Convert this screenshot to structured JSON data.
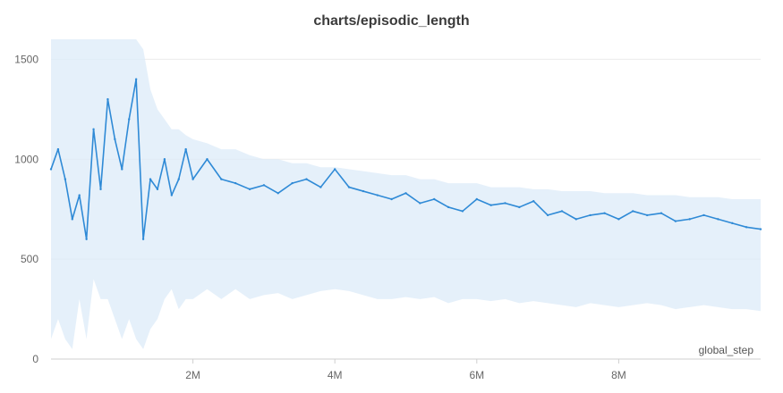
{
  "chart_data": {
    "type": "line",
    "title": "charts/episodic_length",
    "xlabel": "global_step",
    "ylabel": "",
    "xlim": [
      0,
      10000000
    ],
    "ylim": [
      0,
      1600
    ],
    "x_ticks": [
      {
        "value": 2000000,
        "label": "2M"
      },
      {
        "value": 4000000,
        "label": "4M"
      },
      {
        "value": 6000000,
        "label": "6M"
      },
      {
        "value": 8000000,
        "label": "8M"
      }
    ],
    "y_ticks": [
      {
        "value": 0,
        "label": "0"
      },
      {
        "value": 500,
        "label": "500"
      },
      {
        "value": 1000,
        "label": "1000"
      },
      {
        "value": 1500,
        "label": "1500"
      }
    ],
    "grid": true,
    "colors": {
      "line": "#2f8ad6",
      "band": "#dcebf8",
      "grid": "#ebebeb",
      "axis": "#cfcfcf"
    },
    "series": [
      {
        "x": [
          0,
          100000,
          200000,
          300000,
          400000,
          500000,
          600000,
          700000,
          800000,
          900000,
          1000000,
          1100000,
          1200000,
          1300000,
          1400000,
          1500000,
          1600000,
          1700000,
          1800000,
          1900000,
          2000000,
          2200000,
          2400000,
          2600000,
          2800000,
          3000000,
          3200000,
          3400000,
          3600000,
          3800000,
          4000000,
          4200000,
          4400000,
          4600000,
          4800000,
          5000000,
          5200000,
          5400000,
          5600000,
          5800000,
          6000000,
          6200000,
          6400000,
          6600000,
          6800000,
          7000000,
          7200000,
          7400000,
          7600000,
          7800000,
          8000000,
          8200000,
          8400000,
          8600000,
          8800000,
          9000000,
          9200000,
          9400000,
          9600000,
          9800000,
          10000000
        ],
        "values": [
          950,
          1050,
          900,
          700,
          820,
          600,
          1150,
          850,
          1300,
          1100,
          950,
          1200,
          1400,
          600,
          900,
          850,
          1000,
          820,
          900,
          1050,
          900,
          1000,
          900,
          880,
          850,
          870,
          830,
          880,
          900,
          860,
          950,
          860,
          840,
          820,
          800,
          830,
          780,
          800,
          760,
          740,
          800,
          770,
          780,
          760,
          790,
          720,
          740,
          700,
          720,
          730,
          700,
          740,
          720,
          730,
          690,
          700,
          720,
          700,
          680,
          660,
          650
        ],
        "band_lower": [
          100,
          200,
          100,
          50,
          300,
          100,
          400,
          300,
          300,
          200,
          100,
          200,
          100,
          50,
          150,
          200,
          300,
          350,
          250,
          300,
          300,
          350,
          300,
          350,
          300,
          320,
          330,
          300,
          320,
          340,
          350,
          340,
          320,
          300,
          300,
          310,
          300,
          310,
          280,
          300,
          300,
          290,
          300,
          280,
          290,
          280,
          270,
          260,
          280,
          270,
          260,
          270,
          280,
          270,
          250,
          260,
          270,
          260,
          250,
          250,
          240
        ],
        "band_upper": [
          1600,
          1600,
          1600,
          1600,
          1600,
          1600,
          1600,
          1600,
          1600,
          1600,
          1600,
          1600,
          1600,
          1550,
          1350,
          1250,
          1200,
          1150,
          1150,
          1120,
          1100,
          1080,
          1050,
          1050,
          1020,
          1000,
          1000,
          980,
          980,
          960,
          960,
          950,
          940,
          930,
          920,
          920,
          900,
          900,
          880,
          880,
          880,
          860,
          860,
          860,
          850,
          850,
          840,
          840,
          840,
          830,
          830,
          830,
          820,
          820,
          820,
          810,
          810,
          810,
          800,
          800,
          800
        ]
      }
    ]
  }
}
